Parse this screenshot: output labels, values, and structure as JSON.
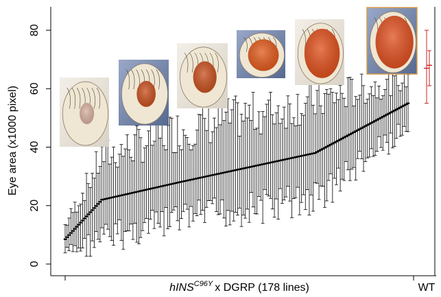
{
  "chart_data": {
    "type": "scatter",
    "ylabel": "Eye area (x1000 pixel)",
    "xlabel": {
      "prefix": "hINS",
      "superscript": "C96Y",
      "suffix": "x DGRP (178 lines)"
    },
    "wt_label": "WT",
    "ylim": [
      -4,
      88
    ],
    "yticks": [
      0,
      20,
      40,
      60,
      80
    ],
    "grid": false,
    "n_lines": 178,
    "colors": {
      "dgrp": "#000000",
      "wt": "#cc2222"
    },
    "dgrp_series": {
      "name": "DGRP",
      "mean_start": 8.5,
      "mean_end": 55.0,
      "note_points": [
        {
          "line": 1,
          "mean": 8.5,
          "low": 4.0,
          "high": 13.0
        },
        {
          "line": 20,
          "mean": 22.0,
          "low": 9.0,
          "high": 36.0
        },
        {
          "line": 60,
          "mean": 28.0,
          "low": 16.0,
          "high": 45.0
        },
        {
          "line": 130,
          "mean": 38.0,
          "low": 23.0,
          "high": 55.0
        },
        {
          "line": 178,
          "mean": 55.0,
          "low": 47.0,
          "high": 63.0
        }
      ]
    },
    "wt_series": [
      {
        "name": "WT",
        "mean": 67.0,
        "low": 55.0,
        "high": 80.0
      },
      {
        "name": "WT",
        "mean": 68.0,
        "low": 61.0,
        "high": 73.0
      }
    ]
  },
  "eye_images": [
    {
      "name": "eye-image-1",
      "eye_fill": "#d8b0a0",
      "eye_size": 0.35
    },
    {
      "name": "eye-image-2",
      "eye_fill": "#c8501e",
      "eye_size": 0.45
    },
    {
      "name": "eye-image-3",
      "eye_fill": "#c8501e",
      "eye_size": 0.55
    },
    {
      "name": "eye-image-4",
      "eye_fill": "#e25a1c",
      "eye_size": 0.75
    },
    {
      "name": "eye-image-5",
      "eye_fill": "#e0501c",
      "eye_size": 0.85
    },
    {
      "name": "eye-image-6",
      "eye_fill": "#e05020",
      "eye_size": 0.9
    }
  ]
}
